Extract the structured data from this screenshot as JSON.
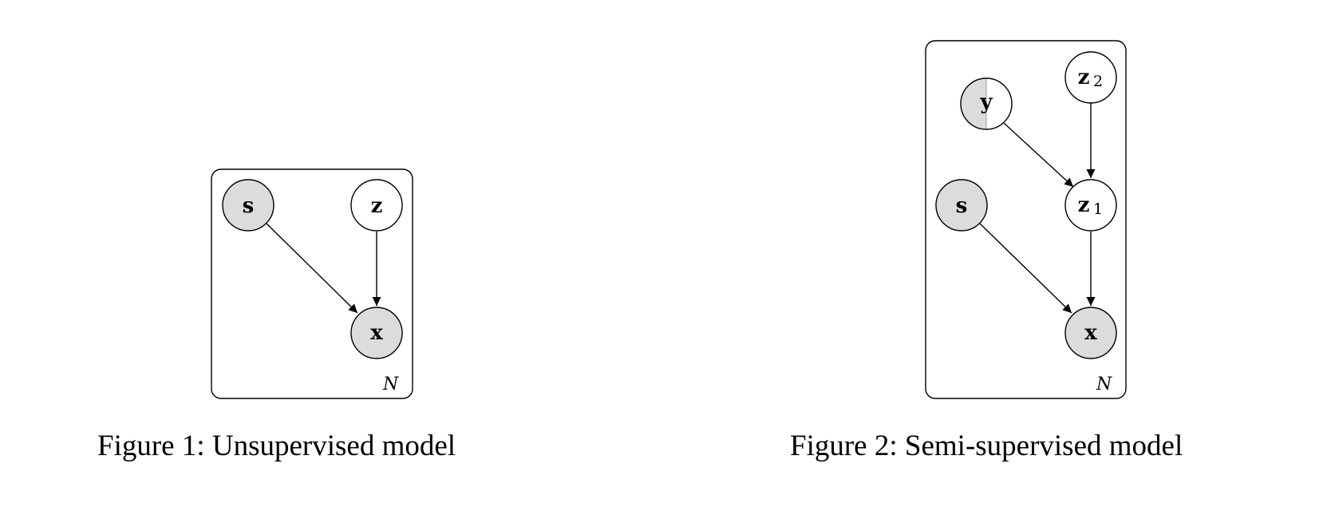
{
  "figures": [
    {
      "caption": "Figure 1: Unsupervised model",
      "plate_label": "N",
      "nodes": {
        "s": {
          "label": "s",
          "sub": "",
          "observed": true
        },
        "z": {
          "label": "z",
          "sub": "",
          "observed": false
        },
        "x": {
          "label": "x",
          "sub": "",
          "observed": true
        }
      },
      "edges": [
        [
          "s",
          "x"
        ],
        [
          "z",
          "x"
        ]
      ]
    },
    {
      "caption": "Figure 2: Semi-supervised model",
      "plate_label": "N",
      "nodes": {
        "y": {
          "label": "y",
          "sub": "",
          "observed": "partial"
        },
        "z2": {
          "label": "z",
          "sub": "2",
          "observed": false
        },
        "z1": {
          "label": "z",
          "sub": "1",
          "observed": false
        },
        "s": {
          "label": "s",
          "sub": "",
          "observed": true
        },
        "x": {
          "label": "x",
          "sub": "",
          "observed": true
        }
      },
      "edges": [
        [
          "y",
          "z1"
        ],
        [
          "z2",
          "z1"
        ],
        [
          "s",
          "x"
        ],
        [
          "z1",
          "x"
        ]
      ]
    }
  ],
  "colors": {
    "observed_fill": "#dcdcdc",
    "latent_fill": "#ffffff",
    "stroke": "#000000"
  }
}
